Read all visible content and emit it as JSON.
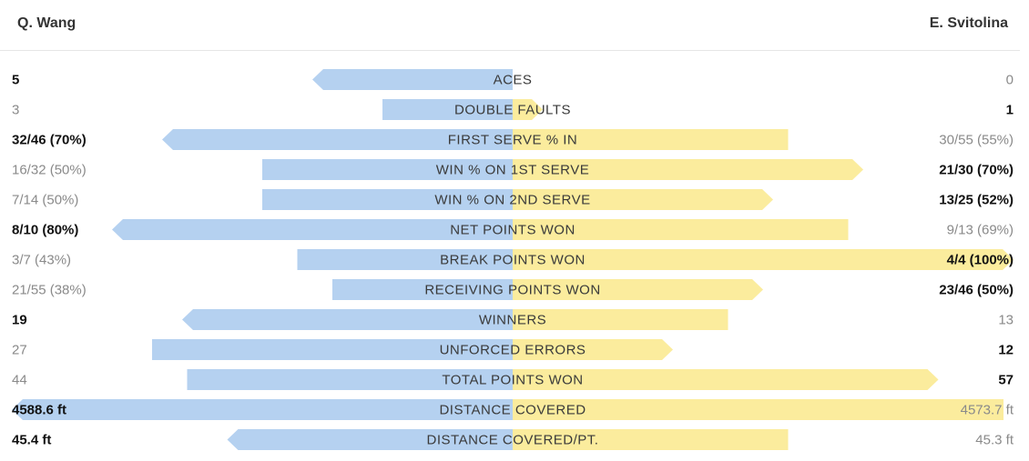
{
  "players": {
    "left": "Q. Wang",
    "right": "E. Svitolina"
  },
  "colors": {
    "left_bar": "#b5d1f0",
    "right_bar": "#fbec9d",
    "winner_text": "#111111",
    "loser_text": "#8a8a8a"
  },
  "chart_data": {
    "type": "bar",
    "orientation": "diverging-horizontal",
    "series": [
      {
        "name": "Q. Wang",
        "side": "left"
      },
      {
        "name": "E. Svitolina",
        "side": "right"
      }
    ],
    "rows": [
      {
        "label": "ACES",
        "left": "5",
        "right": "0",
        "left_value": 5,
        "right_value": 0,
        "left_bar": 0.4,
        "right_bar": 0.0,
        "leader": "left"
      },
      {
        "label": "DOUBLE FAULTS",
        "left": "3",
        "right": "1",
        "left_value": 3,
        "right_value": 1,
        "left_bar": 0.26,
        "right_bar": 0.06,
        "leader": "right"
      },
      {
        "label": "FIRST SERVE % IN",
        "left": "32/46 (70%)",
        "right": "30/55 (55%)",
        "left_value": 70,
        "right_value": 55,
        "left_bar": 0.7,
        "right_bar": 0.55,
        "leader": "left"
      },
      {
        "label": "WIN % ON 1ST SERVE",
        "left": "16/32 (50%)",
        "right": "21/30 (70%)",
        "left_value": 50,
        "right_value": 70,
        "left_bar": 0.5,
        "right_bar": 0.7,
        "leader": "right"
      },
      {
        "label": "WIN % ON 2ND SERVE",
        "left": "7/14 (50%)",
        "right": "13/25 (52%)",
        "left_value": 50,
        "right_value": 52,
        "left_bar": 0.5,
        "right_bar": 0.52,
        "leader": "right"
      },
      {
        "label": "NET POINTS WON",
        "left": "8/10 (80%)",
        "right": "9/13 (69%)",
        "left_value": 80,
        "right_value": 69,
        "left_bar": 0.8,
        "right_bar": 0.67,
        "leader": "left"
      },
      {
        "label": "BREAK POINTS WON",
        "left": "3/7 (43%)",
        "right": "4/4 (100%)",
        "left_value": 43,
        "right_value": 100,
        "left_bar": 0.43,
        "right_bar": 1.0,
        "leader": "right"
      },
      {
        "label": "RECEIVING POINTS WON",
        "left": "21/55 (38%)",
        "right": "23/46 (50%)",
        "left_value": 38,
        "right_value": 50,
        "left_bar": 0.36,
        "right_bar": 0.5,
        "leader": "right"
      },
      {
        "label": "WINNERS",
        "left": "19",
        "right": "13",
        "left_value": 19,
        "right_value": 13,
        "left_bar": 0.66,
        "right_bar": 0.43,
        "leader": "left"
      },
      {
        "label": "UNFORCED ERRORS",
        "left": "27",
        "right": "12",
        "left_value": 27,
        "right_value": 12,
        "left_bar": 0.72,
        "right_bar": 0.32,
        "leader": "right"
      },
      {
        "label": "TOTAL POINTS WON",
        "left": "44",
        "right": "57",
        "left_value": 44,
        "right_value": 57,
        "left_bar": 0.65,
        "right_bar": 0.85,
        "leader": "right"
      },
      {
        "label": "DISTANCE COVERED",
        "left": "4588.6 ft",
        "right": "4573.7 ft",
        "left_value": 4588.6,
        "right_value": 4573.7,
        "left_bar": 1.0,
        "right_bar": 0.98,
        "leader": "left"
      },
      {
        "label": "DISTANCE COVERED/PT.",
        "left": "45.4 ft",
        "right": "45.3 ft",
        "left_value": 45.4,
        "right_value": 45.3,
        "left_bar": 0.57,
        "right_bar": 0.55,
        "leader": "left"
      }
    ]
  }
}
